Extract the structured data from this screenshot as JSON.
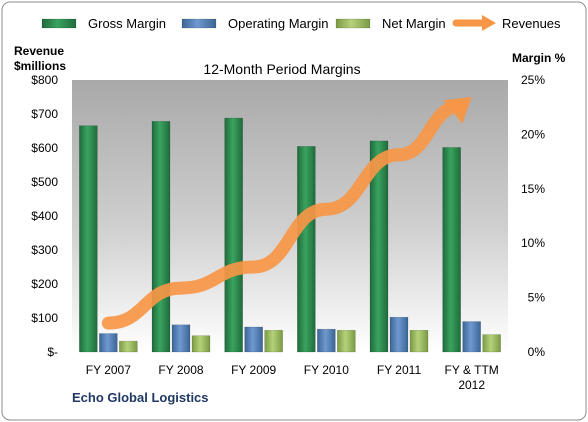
{
  "chart_data": {
    "type": "bar",
    "title": "12-Month Period Margins",
    "company": "Echo Global Logistics",
    "categories": [
      "FY 2007",
      "FY 2008",
      "FY 2009",
      "FY 2010",
      "FY 2011",
      "FY & TTM|2012"
    ],
    "left_axis": {
      "label_line1": "Revenue",
      "label_line2": "$millions",
      "min": 0,
      "max": 800,
      "ticks": [
        "$-",
        "$100",
        "$200",
        "$300",
        "$400",
        "$500",
        "$600",
        "$700",
        "$800"
      ]
    },
    "right_axis": {
      "label": "Margin %",
      "min": 0,
      "max": 25,
      "ticks": [
        "0%",
        "5%",
        "10%",
        "15%",
        "20%",
        "25%"
      ]
    },
    "series": [
      {
        "name": "Gross Margin",
        "kind": "bar",
        "axis": "right",
        "color": "#2e8b57",
        "values": [
          20.8,
          21.2,
          21.5,
          18.9,
          19.4,
          18.8
        ]
      },
      {
        "name": "Operating Margin",
        "kind": "bar",
        "axis": "right",
        "color": "#4f81bd",
        "values": [
          1.7,
          2.5,
          2.3,
          2.1,
          3.2,
          2.8
        ]
      },
      {
        "name": "Net Margin",
        "kind": "bar",
        "axis": "right",
        "color": "#9bbb59",
        "values": [
          1.0,
          1.5,
          2.0,
          2.0,
          2.0,
          1.6
        ]
      },
      {
        "name": "Revenues",
        "kind": "line",
        "axis": "left",
        "color": "#f79646",
        "values": [
          85,
          188,
          250,
          420,
          580,
          750
        ]
      }
    ],
    "grid": false,
    "legend": "top"
  }
}
